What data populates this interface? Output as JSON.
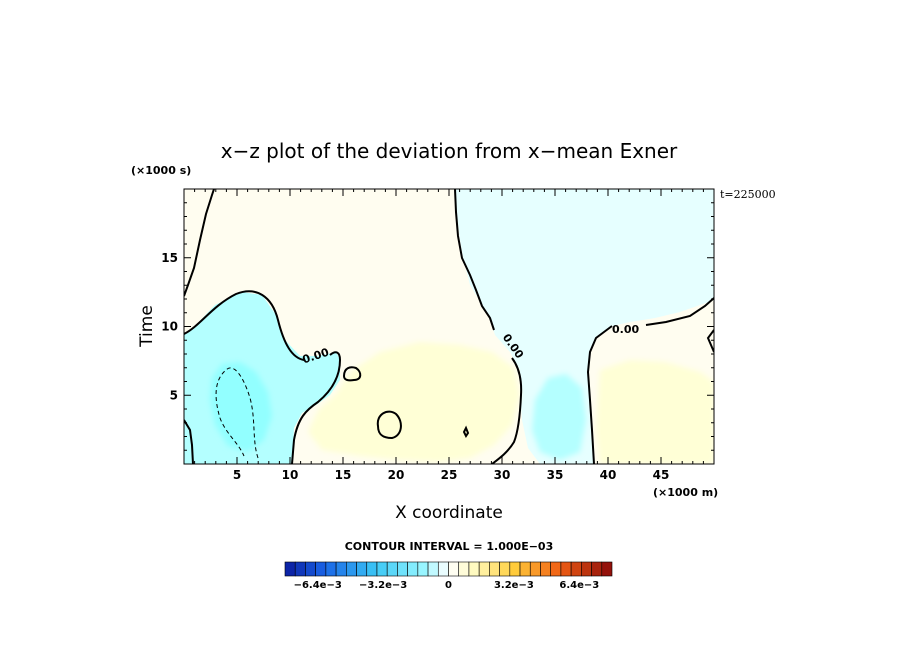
{
  "chart_data": {
    "type": "heatmap",
    "title": "x−z plot of the deviation from x−mean Exner",
    "xlabel": "X coordinate",
    "ylabel": "Time",
    "x_unit": "(×1000 m)",
    "y_unit": "(×1000 s)",
    "time_annotation": "t=225000",
    "xlim": [
      0,
      50
    ],
    "ylim": [
      0,
      20
    ],
    "x_ticks": [
      5,
      10,
      15,
      20,
      25,
      30,
      35,
      40,
      45
    ],
    "x_tick_labels": [
      "5",
      "10",
      "15",
      "20",
      "25",
      "30",
      "35",
      "40",
      "45"
    ],
    "y_ticks": [
      5,
      10,
      15
    ],
    "y_tick_labels": [
      "5",
      "10",
      "15"
    ],
    "contour_interval_text": "CONTOUR INTERVAL = 1.000E−03",
    "contour_labels": [
      "0.00",
      "0.00",
      "0.00"
    ],
    "colorbar": {
      "range": [
        -0.008,
        0.008
      ],
      "n_levels": 32,
      "tick_values": [
        -0.0064,
        -0.0032,
        0,
        0.0032,
        0.0064
      ],
      "tick_labels": [
        "−6.4e−3",
        "−3.2e−3",
        "0",
        "3.2e−3",
        "6.4e−3"
      ],
      "low_color": "#0a1a9e",
      "mid_color": "#ffffff",
      "high_color": "#8a0a0a"
    },
    "regions": [
      {
        "name": "positive-left-upper",
        "value": 0.0002
      },
      {
        "name": "negative-upper-right",
        "value": -0.0004
      },
      {
        "name": "negative-left-lower",
        "value": -0.0012
      },
      {
        "name": "negative-core",
        "value": -0.0025
      },
      {
        "name": "positive-center",
        "value": 0.0008
      },
      {
        "name": "negative-trough",
        "value": -0.0009
      },
      {
        "name": "positive-right-lower",
        "value": 0.0007
      }
    ]
  },
  "colors": {
    "axes": "#000000",
    "background": "#ffffff",
    "weak_positive": "#fffdf0",
    "moderate_positive": "#ffffd6",
    "weak_negative": "#e6ffff",
    "moderate_negative": "#b4ffff",
    "strong_negative": "#92ffff"
  }
}
